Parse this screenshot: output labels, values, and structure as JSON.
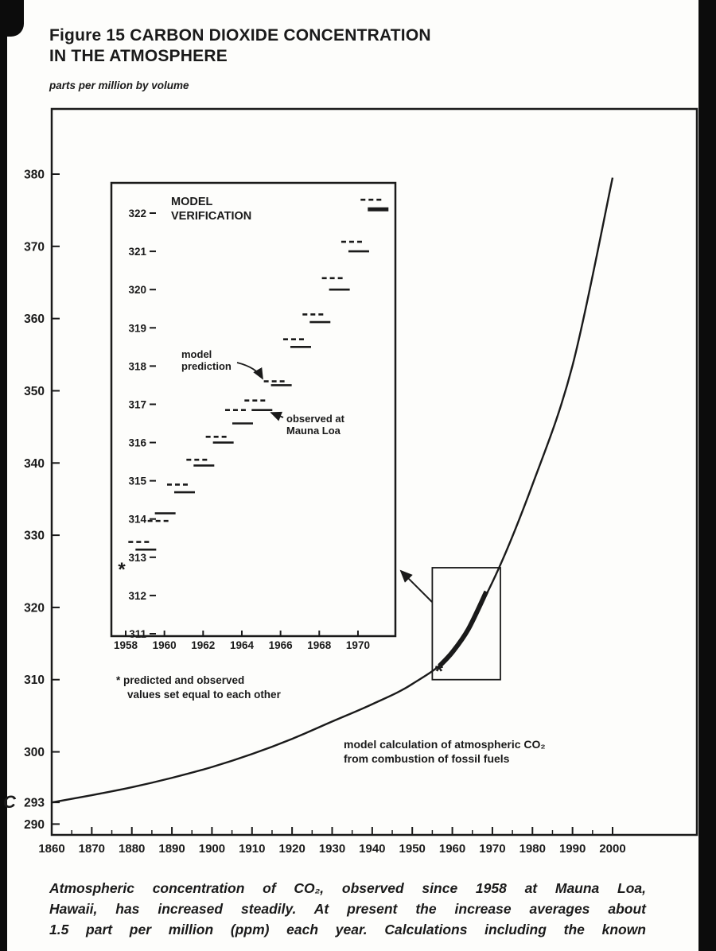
{
  "colors": {
    "ink": "#1a1a1a",
    "paper": "#fdfdfb",
    "scan_edge": "#0c0c0c"
  },
  "page": {
    "figure_title_lines": [
      "Figure 15 CARBON DIOXIDE CONCENTRATION",
      "IN THE ATMOSPHERE"
    ],
    "units_label": "parts per million by volume",
    "stray_mark": "C",
    "caption_lines": [
      "Atmospheric concentration of CO₂, observed since 1958 at Mauna Loa,",
      "Hawaii, has increased steadily. At present the increase averages about",
      "1.5 part per million (ppm) each year. Calculations including the known"
    ]
  },
  "chart_data": {
    "type": "line",
    "title": "Figure 15 CARBON DIOXIDE CONCENTRATION IN THE ATMOSPHERE",
    "ylabel": "parts per million by volume",
    "main": {
      "xlim": [
        1860,
        2000
      ],
      "ylim": [
        288.5,
        380
      ],
      "x_ticks": [
        1860,
        1870,
        1880,
        1890,
        1900,
        1910,
        1920,
        1930,
        1940,
        1950,
        1960,
        1970,
        1980,
        1990,
        2000
      ],
      "y_ticks": [
        290,
        293,
        300,
        310,
        320,
        330,
        340,
        350,
        360,
        370,
        380
      ],
      "series": [
        {
          "name": "model calculation of atmospheric CO₂ from combustion of fossil fuels",
          "style": "solid-curve",
          "points": [
            [
              1860,
              293
            ],
            [
              1870,
              294
            ],
            [
              1880,
              295.1
            ],
            [
              1890,
              296.4
            ],
            [
              1900,
              297.9
            ],
            [
              1910,
              299.7
            ],
            [
              1920,
              301.8
            ],
            [
              1930,
              304.2
            ],
            [
              1940,
              306.6
            ],
            [
              1950,
              309.4
            ],
            [
              1960,
              313.8
            ],
            [
              1970,
              323.5
            ],
            [
              1980,
              337
            ],
            [
              1990,
              353.5
            ],
            [
              2000,
              379.5
            ]
          ]
        },
        {
          "name": "observed at Mauna Loa (thick overlay segment)",
          "style": "thick",
          "points": [
            [
              1956.8,
              311.9
            ],
            [
              1960,
              313.8
            ],
            [
              1964,
              317.0
            ],
            [
              1968.5,
              322.2
            ]
          ]
        }
      ],
      "annotation_lines": [
        "model calculation of atmospheric CO₂",
        "from combustion of fossil fuels"
      ],
      "asterisk": {
        "year": 1956.7,
        "ppm": 311.3
      },
      "zoom_box": {
        "year_min": 1955,
        "year_max": 1972,
        "ppm_min": 310,
        "ppm_max": 325.5
      }
    },
    "inset": {
      "title_lines": [
        "MODEL",
        "VERIFICATION"
      ],
      "xlim": [
        1957.3,
        1971.9
      ],
      "ylim": [
        311,
        322.8
      ],
      "x_ticks": [
        1958,
        1960,
        1962,
        1964,
        1966,
        1968,
        1970
      ],
      "y_ticks": [
        311,
        312,
        313,
        314,
        315,
        316,
        317,
        318,
        319,
        320,
        321,
        322
      ],
      "asterisk": {
        "year": 1958,
        "ppm": 312.7
      },
      "series_labels": {
        "observed": "observed at Mauna Loa",
        "predicted": "model prediction"
      },
      "pairs": [
        {
          "year": 1959,
          "observed": 313.2,
          "predicted": 313.4
        },
        {
          "year": 1960,
          "observed": 314.15,
          "predicted": 313.95
        },
        {
          "year": 1961,
          "observed": 314.7,
          "predicted": 314.9
        },
        {
          "year": 1962,
          "observed": 315.4,
          "predicted": 315.55
        },
        {
          "year": 1963,
          "observed": 316.0,
          "predicted": 316.15
        },
        {
          "year": 1964,
          "observed": 316.5,
          "predicted": 316.85
        },
        {
          "year": 1965,
          "observed": 316.85,
          "predicted": 317.1
        },
        {
          "year": 1966,
          "observed": 317.5,
          "predicted": 317.6
        },
        {
          "year": 1967,
          "observed": 318.5,
          "predicted": 318.7
        },
        {
          "year": 1968,
          "observed": 319.15,
          "predicted": 319.35
        },
        {
          "year": 1969,
          "observed": 320.0,
          "predicted": 320.3
        },
        {
          "year": 1970,
          "observed": 321.0,
          "predicted": 321.25
        },
        {
          "year": 1971,
          "observed": 322.1,
          "predicted": 322.35,
          "thick": true
        }
      ],
      "annotations": {
        "model_prediction_lines": [
          "model",
          "prediction"
        ],
        "observed_lines": [
          "observed at",
          "Mauna Loa"
        ]
      },
      "footnote_lines": [
        "* predicted and observed",
        "values set equal to each other"
      ]
    }
  }
}
